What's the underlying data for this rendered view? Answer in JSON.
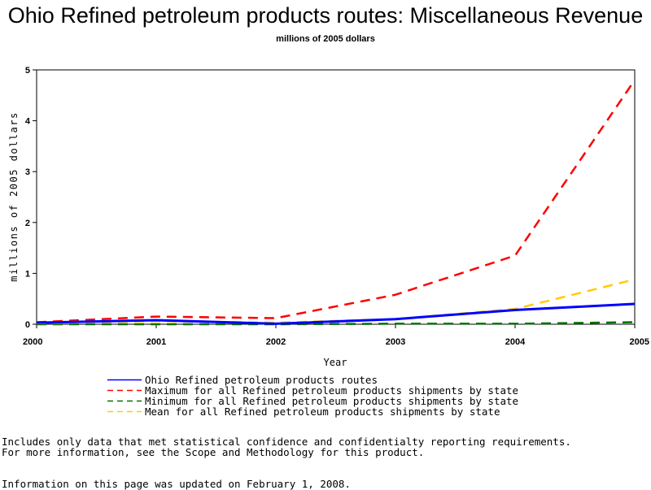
{
  "chart_data": {
    "type": "line",
    "title": "Ohio Refined petroleum products routes: Miscellaneous Revenue",
    "subtitle": "millions of 2005 dollars",
    "xlabel": "Year",
    "ylabel": "millions of 2005 dollars",
    "x": [
      2000,
      2001,
      2002,
      2003,
      2004,
      2005
    ],
    "xlim": [
      2000,
      2005
    ],
    "ylim": [
      0,
      5
    ],
    "yticks": [
      0,
      1,
      2,
      3,
      4,
      5
    ],
    "grid": false,
    "legend_position": "bottom",
    "series": [
      {
        "name": "Ohio Refined petroleum products routes",
        "values": [
          0.03,
          0.08,
          0.01,
          0.1,
          0.28,
          0.4
        ],
        "color": "#0000ff",
        "dash": "solid"
      },
      {
        "name": "Maximum for all Refined petroleum products shipments by state",
        "values": [
          0.04,
          0.15,
          0.12,
          0.58,
          1.35,
          4.8
        ],
        "color": "#ff0000",
        "dash": "dashed"
      },
      {
        "name": "Minimum for all Refined petroleum products shipments by state",
        "values": [
          0.0,
          0.0,
          0.0,
          0.01,
          0.01,
          0.04
        ],
        "color": "#007000",
        "dash": "dashed"
      },
      {
        "name": "Mean for all Refined petroleum products shipments by state",
        "values": [
          0.02,
          0.06,
          0.03,
          0.1,
          0.3,
          0.88
        ],
        "color": "#ffcc00",
        "dash": "dashed"
      }
    ]
  },
  "footnotes": {
    "line1": "Includes only data that met statistical confidence and confidentialty reporting requirements.",
    "line2": "For more information, see the Scope and Methodology for this product.",
    "updated": "Information on this page was updated on February 1, 2008."
  }
}
